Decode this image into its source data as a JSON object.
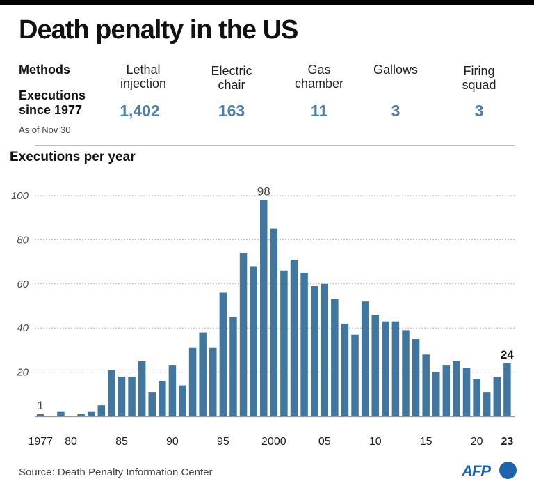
{
  "header": {
    "title": "Death penalty in the US",
    "methods_label": "Methods",
    "executions_label_line1": "Executions",
    "executions_label_line2": "since 1977",
    "as_of": "As of Nov 30"
  },
  "methods": [
    {
      "line1": "Lethal",
      "line2": "injection",
      "count": "1,402"
    },
    {
      "line1": "Electric",
      "line2": "chair",
      "count": "163"
    },
    {
      "line1": "Gas",
      "line2": "chamber",
      "count": "11"
    },
    {
      "line1": "Gallows",
      "line2": "",
      "count": "3"
    },
    {
      "line1": "Firing",
      "line2": "squad",
      "count": "3"
    }
  ],
  "footer": {
    "source": "Source: Death Penalty Information Center",
    "logo": "AFP"
  },
  "colors": {
    "bar": "#41779e",
    "count_text": "#4b7fa8",
    "grid": "#bbbbbb",
    "brand": "#1f63ad"
  },
  "chart_data": {
    "type": "bar",
    "title": "Executions per year",
    "xlabel": "",
    "ylabel": "",
    "ylim": [
      0,
      100
    ],
    "yticks": [
      20,
      40,
      60,
      80,
      100
    ],
    "grid": true,
    "x": [
      1977,
      1978,
      1979,
      1980,
      1981,
      1982,
      1983,
      1984,
      1985,
      1986,
      1987,
      1988,
      1989,
      1990,
      1991,
      1992,
      1993,
      1994,
      1995,
      1996,
      1997,
      1998,
      1999,
      2000,
      2001,
      2002,
      2003,
      2004,
      2005,
      2006,
      2007,
      2008,
      2009,
      2010,
      2011,
      2012,
      2013,
      2014,
      2015,
      2016,
      2017,
      2018,
      2019,
      2020,
      2021,
      2022,
      2023
    ],
    "values": [
      1,
      0,
      2,
      0,
      1,
      2,
      5,
      21,
      18,
      18,
      25,
      11,
      16,
      23,
      14,
      31,
      38,
      31,
      56,
      45,
      74,
      68,
      98,
      85,
      66,
      71,
      65,
      59,
      60,
      53,
      42,
      37,
      52,
      46,
      43,
      43,
      39,
      35,
      28,
      20,
      23,
      25,
      22,
      17,
      11,
      18,
      24
    ],
    "xticks": [
      {
        "year": 1977,
        "label": "1977",
        "bold": false
      },
      {
        "year": 1980,
        "label": "80",
        "bold": false
      },
      {
        "year": 1985,
        "label": "85",
        "bold": false
      },
      {
        "year": 1990,
        "label": "90",
        "bold": false
      },
      {
        "year": 1995,
        "label": "95",
        "bold": false
      },
      {
        "year": 2000,
        "label": "2000",
        "bold": false
      },
      {
        "year": 2005,
        "label": "05",
        "bold": false
      },
      {
        "year": 2010,
        "label": "10",
        "bold": false
      },
      {
        "year": 2015,
        "label": "15",
        "bold": false
      },
      {
        "year": 2020,
        "label": "20",
        "bold": false
      },
      {
        "year": 2023,
        "label": "23",
        "bold": true
      }
    ],
    "annotations": [
      {
        "year": 1977,
        "text": "1",
        "bold": false
      },
      {
        "year": 1999,
        "text": "98",
        "bold": false
      },
      {
        "year": 2023,
        "text": "24",
        "bold": true
      }
    ]
  }
}
